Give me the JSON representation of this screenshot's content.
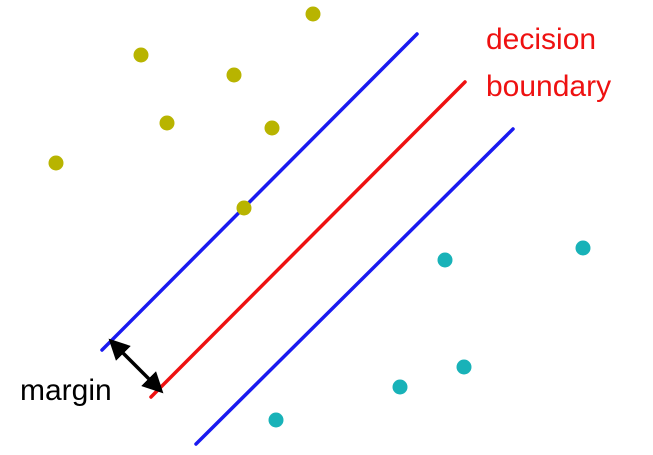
{
  "labels": {
    "decision_boundary_line1": "decision",
    "decision_boundary_line2": "boundary",
    "margin": "margin"
  },
  "colors": {
    "boundary": "#ee1111",
    "margin_lines": "#1a1af0",
    "class_a": "#b8b400",
    "class_b": "#18b2b8",
    "arrow": "#000000",
    "decision_label": "#ee1111",
    "margin_label": "#000000"
  }
}
